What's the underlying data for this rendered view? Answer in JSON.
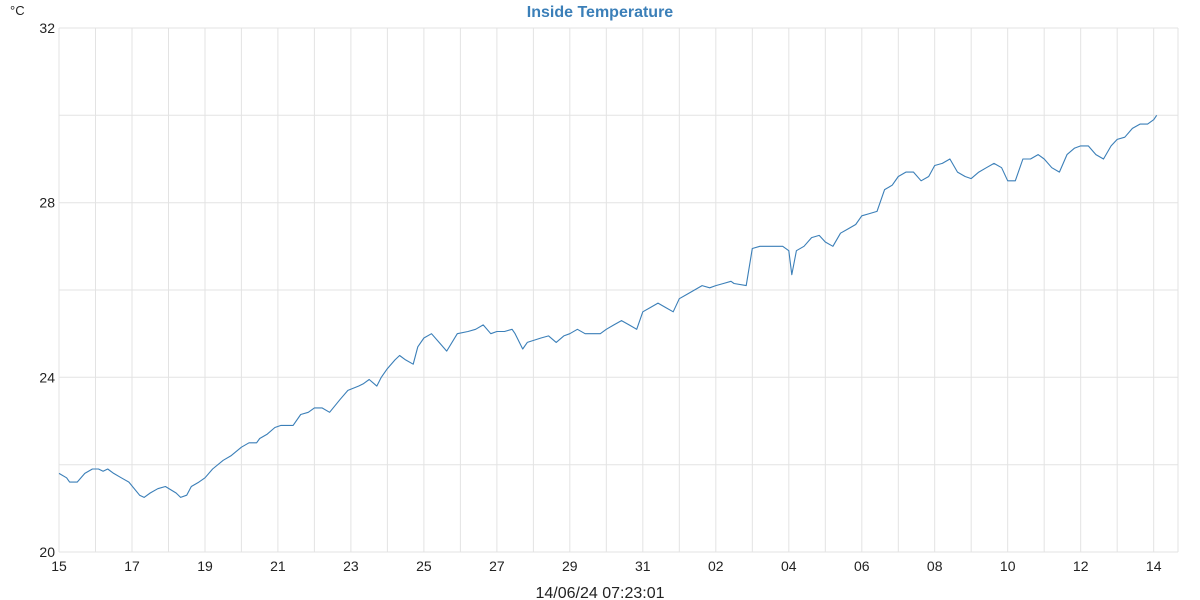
{
  "chart_data": {
    "type": "line",
    "title": "Inside Temperature",
    "y_unit": "°C",
    "timestamp": "14/06/24 07:23:01",
    "ylim": [
      20,
      32
    ],
    "y_ticks": [
      20,
      24,
      28,
      32
    ],
    "y_minor_gridlines": [
      22,
      26,
      30
    ],
    "xlim": [
      "2024-05-15",
      "2024-06-14 16:00"
    ],
    "x_ticks": [
      {
        "date": "2024-05-15",
        "label": "15"
      },
      {
        "date": "2024-05-17",
        "label": "17"
      },
      {
        "date": "2024-05-19",
        "label": "19"
      },
      {
        "date": "2024-05-21",
        "label": "21"
      },
      {
        "date": "2024-05-23",
        "label": "23"
      },
      {
        "date": "2024-05-25",
        "label": "25"
      },
      {
        "date": "2024-05-27",
        "label": "27"
      },
      {
        "date": "2024-05-29",
        "label": "29"
      },
      {
        "date": "2024-05-31",
        "label": "31"
      },
      {
        "date": "2024-06-02",
        "label": "02"
      },
      {
        "date": "2024-06-04",
        "label": "04"
      },
      {
        "date": "2024-06-06",
        "label": "06"
      },
      {
        "date": "2024-06-08",
        "label": "08"
      },
      {
        "date": "2024-06-10",
        "label": "10"
      },
      {
        "date": "2024-06-12",
        "label": "12"
      },
      {
        "date": "2024-06-14",
        "label": "14"
      }
    ],
    "x_daily_gridlines": true,
    "grid": true,
    "colors": {
      "line": "#3b7fb8",
      "title": "#3b7fb8",
      "grid": "#e3e3e3"
    },
    "series": [
      {
        "points": [
          [
            "2024-05-15 00:00",
            21.8
          ],
          [
            "2024-05-15 05:00",
            21.7
          ],
          [
            "2024-05-15 07:00",
            21.6
          ],
          [
            "2024-05-15 12:00",
            21.6
          ],
          [
            "2024-05-15 17:00",
            21.8
          ],
          [
            "2024-05-15 22:00",
            21.9
          ],
          [
            "2024-05-16 02:00",
            21.9
          ],
          [
            "2024-05-16 05:00",
            21.85
          ],
          [
            "2024-05-16 08:00",
            21.9
          ],
          [
            "2024-05-16 12:00",
            21.8
          ],
          [
            "2024-05-16 17:00",
            21.7
          ],
          [
            "2024-05-16 22:00",
            21.6
          ],
          [
            "2024-05-17 05:00",
            21.3
          ],
          [
            "2024-05-17 08:00",
            21.25
          ],
          [
            "2024-05-17 12:00",
            21.35
          ],
          [
            "2024-05-17 17:00",
            21.45
          ],
          [
            "2024-05-17 22:00",
            21.5
          ],
          [
            "2024-05-18 05:00",
            21.35
          ],
          [
            "2024-05-18 08:00",
            21.25
          ],
          [
            "2024-05-18 12:00",
            21.3
          ],
          [
            "2024-05-18 15:00",
            21.5
          ],
          [
            "2024-05-18 20:00",
            21.6
          ],
          [
            "2024-05-19 00:00",
            21.7
          ],
          [
            "2024-05-19 05:00",
            21.9
          ],
          [
            "2024-05-19 12:00",
            22.1
          ],
          [
            "2024-05-19 17:00",
            22.2
          ],
          [
            "2024-05-20 00:00",
            22.4
          ],
          [
            "2024-05-20 05:00",
            22.5
          ],
          [
            "2024-05-20 10:00",
            22.5
          ],
          [
            "2024-05-20 12:00",
            22.6
          ],
          [
            "2024-05-20 17:00",
            22.7
          ],
          [
            "2024-05-20 22:00",
            22.85
          ],
          [
            "2024-05-21 02:00",
            22.9
          ],
          [
            "2024-05-21 10:00",
            22.9
          ],
          [
            "2024-05-21 15:00",
            23.15
          ],
          [
            "2024-05-21 20:00",
            23.2
          ],
          [
            "2024-05-22 00:00",
            23.3
          ],
          [
            "2024-05-22 05:00",
            23.3
          ],
          [
            "2024-05-22 10:00",
            23.2
          ],
          [
            "2024-05-22 17:00",
            23.5
          ],
          [
            "2024-05-22 22:00",
            23.7
          ],
          [
            "2024-05-23 05:00",
            23.8
          ],
          [
            "2024-05-23 08:00",
            23.85
          ],
          [
            "2024-05-23 12:00",
            23.95
          ],
          [
            "2024-05-23 17:00",
            23.8
          ],
          [
            "2024-05-23 20:00",
            24.0
          ],
          [
            "2024-05-24 00:00",
            24.2
          ],
          [
            "2024-05-24 05:00",
            24.4
          ],
          [
            "2024-05-24 08:00",
            24.5
          ],
          [
            "2024-05-24 12:00",
            24.4
          ],
          [
            "2024-05-24 17:00",
            24.3
          ],
          [
            "2024-05-24 20:00",
            24.7
          ],
          [
            "2024-05-25 00:00",
            24.9
          ],
          [
            "2024-05-25 05:00",
            25.0
          ],
          [
            "2024-05-25 10:00",
            24.8
          ],
          [
            "2024-05-25 15:00",
            24.6
          ],
          [
            "2024-05-25 22:00",
            25.0
          ],
          [
            "2024-05-26 05:00",
            25.05
          ],
          [
            "2024-05-26 10:00",
            25.1
          ],
          [
            "2024-05-26 15:00",
            25.2
          ],
          [
            "2024-05-26 20:00",
            25.0
          ],
          [
            "2024-05-27 00:00",
            25.05
          ],
          [
            "2024-05-27 05:00",
            25.05
          ],
          [
            "2024-05-27 10:00",
            25.1
          ],
          [
            "2024-05-27 12:00",
            25.0
          ],
          [
            "2024-05-27 17:00",
            24.65
          ],
          [
            "2024-05-27 20:00",
            24.8
          ],
          [
            "2024-05-28 05:00",
            24.9
          ],
          [
            "2024-05-28 10:00",
            24.95
          ],
          [
            "2024-05-28 15:00",
            24.8
          ],
          [
            "2024-05-28 20:00",
            24.95
          ],
          [
            "2024-05-29 00:00",
            25.0
          ],
          [
            "2024-05-29 05:00",
            25.1
          ],
          [
            "2024-05-29 10:00",
            25.0
          ],
          [
            "2024-05-29 15:00",
            25.0
          ],
          [
            "2024-05-29 20:00",
            25.0
          ],
          [
            "2024-05-30 00:00",
            25.1
          ],
          [
            "2024-05-30 05:00",
            25.2
          ],
          [
            "2024-05-30 10:00",
            25.3
          ],
          [
            "2024-05-30 15:00",
            25.2
          ],
          [
            "2024-05-30 20:00",
            25.1
          ],
          [
            "2024-05-31 00:00",
            25.5
          ],
          [
            "2024-05-31 05:00",
            25.6
          ],
          [
            "2024-05-31 10:00",
            25.7
          ],
          [
            "2024-05-31 15:00",
            25.6
          ],
          [
            "2024-05-31 20:00",
            25.5
          ],
          [
            "2024-06-01 00:00",
            25.8
          ],
          [
            "2024-06-01 05:00",
            25.9
          ],
          [
            "2024-06-01 10:00",
            26.0
          ],
          [
            "2024-06-01 15:00",
            26.1
          ],
          [
            "2024-06-01 20:00",
            26.05
          ],
          [
            "2024-06-02 00:00",
            26.1
          ],
          [
            "2024-06-02 05:00",
            26.15
          ],
          [
            "2024-06-02 10:00",
            26.2
          ],
          [
            "2024-06-02 12:00",
            26.15
          ],
          [
            "2024-06-02 20:00",
            26.1
          ],
          [
            "2024-06-03 00:00",
            26.95
          ],
          [
            "2024-06-03 05:00",
            27.0
          ],
          [
            "2024-06-03 12:00",
            27.0
          ],
          [
            "2024-06-03 20:00",
            27.0
          ],
          [
            "2024-06-04 00:00",
            26.9
          ],
          [
            "2024-06-04 02:00",
            26.35
          ],
          [
            "2024-06-04 05:00",
            26.9
          ],
          [
            "2024-06-04 10:00",
            27.0
          ],
          [
            "2024-06-04 15:00",
            27.2
          ],
          [
            "2024-06-04 20:00",
            27.25
          ],
          [
            "2024-06-05 00:00",
            27.1
          ],
          [
            "2024-06-05 05:00",
            27.0
          ],
          [
            "2024-06-05 10:00",
            27.3
          ],
          [
            "2024-06-05 15:00",
            27.4
          ],
          [
            "2024-06-05 20:00",
            27.5
          ],
          [
            "2024-06-06 00:00",
            27.7
          ],
          [
            "2024-06-06 05:00",
            27.75
          ],
          [
            "2024-06-06 10:00",
            27.8
          ],
          [
            "2024-06-06 15:00",
            28.3
          ],
          [
            "2024-06-06 20:00",
            28.4
          ],
          [
            "2024-06-07 00:00",
            28.6
          ],
          [
            "2024-06-07 05:00",
            28.7
          ],
          [
            "2024-06-07 10:00",
            28.7
          ],
          [
            "2024-06-07 15:00",
            28.5
          ],
          [
            "2024-06-07 20:00",
            28.6
          ],
          [
            "2024-06-08 00:00",
            28.85
          ],
          [
            "2024-06-08 05:00",
            28.9
          ],
          [
            "2024-06-08 10:00",
            29.0
          ],
          [
            "2024-06-08 15:00",
            28.7
          ],
          [
            "2024-06-08 20:00",
            28.6
          ],
          [
            "2024-06-09 00:00",
            28.55
          ],
          [
            "2024-06-09 05:00",
            28.7
          ],
          [
            "2024-06-09 10:00",
            28.8
          ],
          [
            "2024-06-09 15:00",
            28.9
          ],
          [
            "2024-06-09 20:00",
            28.8
          ],
          [
            "2024-06-10 00:00",
            28.5
          ],
          [
            "2024-06-10 05:00",
            28.5
          ],
          [
            "2024-06-10 10:00",
            29.0
          ],
          [
            "2024-06-10 15:00",
            29.0
          ],
          [
            "2024-06-10 20:00",
            29.1
          ],
          [
            "2024-06-11 00:00",
            29.0
          ],
          [
            "2024-06-11 05:00",
            28.8
          ],
          [
            "2024-06-11 10:00",
            28.7
          ],
          [
            "2024-06-11 15:00",
            29.1
          ],
          [
            "2024-06-11 20:00",
            29.25
          ],
          [
            "2024-06-12 00:00",
            29.3
          ],
          [
            "2024-06-12 05:00",
            29.3
          ],
          [
            "2024-06-12 10:00",
            29.1
          ],
          [
            "2024-06-12 15:00",
            29.0
          ],
          [
            "2024-06-12 20:00",
            29.3
          ],
          [
            "2024-06-13 00:00",
            29.45
          ],
          [
            "2024-06-13 05:00",
            29.5
          ],
          [
            "2024-06-13 10:00",
            29.7
          ],
          [
            "2024-06-13 15:00",
            29.8
          ],
          [
            "2024-06-13 20:00",
            29.8
          ],
          [
            "2024-06-14 00:00",
            29.9
          ],
          [
            "2024-06-14 02:00",
            30.0
          ]
        ]
      }
    ]
  }
}
